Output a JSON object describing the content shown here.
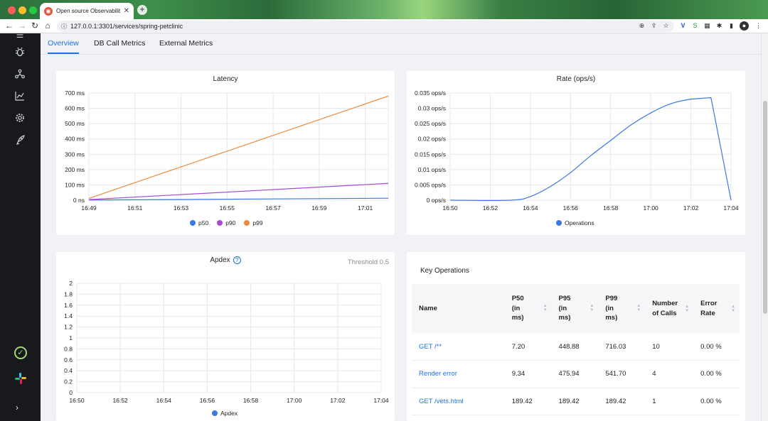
{
  "browser": {
    "tab_title": "Open source Observability Pla",
    "url": "127.0.0.1:3301/services/spring-petclinic"
  },
  "tabs": [
    "Overview",
    "DB Call Metrics",
    "External Metrics"
  ],
  "latency": {
    "title": "Latency",
    "legend": [
      "p50",
      "p90",
      "p99"
    ]
  },
  "rate": {
    "title": "Rate (ops/s)",
    "legend": [
      "Operations"
    ]
  },
  "apdex": {
    "title": "Apdex",
    "threshold": "Threshold 0.5",
    "legend": [
      "Apdex"
    ]
  },
  "key_operations": {
    "title": "Key Operations",
    "columns": [
      "Name",
      "P50 (in ms)",
      "P95 (in ms)",
      "P99 (in ms)",
      "Number of Calls",
      "Error Rate"
    ],
    "rows": [
      {
        "name": "GET /**",
        "p50": "7.20",
        "p95": "448.88",
        "p99": "716.03",
        "calls": "10",
        "error": "0.00 %"
      },
      {
        "name": "Render error",
        "p50": "9.34",
        "p95": "475.94",
        "p99": "541.70",
        "calls": "4",
        "error": "0.00 %"
      },
      {
        "name": "GET /vets.html",
        "p50": "189.42",
        "p95": "189.42",
        "p99": "189.42",
        "calls": "1",
        "error": "0.00 %"
      }
    ]
  },
  "colors": {
    "accent": "#1a73e8",
    "p50": "#3b78e7",
    "p90": "#a74ad6",
    "p99": "#ee8a3c"
  },
  "chart_data": [
    {
      "type": "line",
      "title": "Latency",
      "x_ticks": [
        "16:49",
        "16:51",
        "16:53",
        "16:55",
        "16:57",
        "16:59",
        "17:01"
      ],
      "y_ticks": [
        "700 ms",
        "600 ms",
        "500 ms",
        "400 ms",
        "300 ms",
        "200 ms",
        "100 ms",
        "0 ns"
      ],
      "ylim": [
        0,
        700
      ],
      "grid": true,
      "legend": "bottom",
      "x": [
        "16:49",
        "17:02"
      ],
      "series": [
        {
          "name": "p50",
          "values": [
            1,
            13
          ]
        },
        {
          "name": "p90",
          "values": [
            4,
            110
          ]
        },
        {
          "name": "p99",
          "values": [
            12,
            680
          ]
        }
      ]
    },
    {
      "type": "line",
      "title": "Rate (ops/s)",
      "x_ticks": [
        "16:50",
        "16:52",
        "16:54",
        "16:56",
        "16:58",
        "17:00",
        "17:02",
        "17:04"
      ],
      "y_ticks": [
        "0.035 ops/s",
        "0.03 ops/s",
        "0.025 ops/s",
        "0.02 ops/s",
        "0.015 ops/s",
        "0.01 ops/s",
        "0.005 ops/s",
        "0 ops/s"
      ],
      "ylim": [
        0,
        0.035
      ],
      "grid": true,
      "legend": "bottom",
      "series": [
        {
          "name": "Operations",
          "x": [
            "16:50",
            "16:53",
            "16:54",
            "16:55",
            "16:56",
            "16:57",
            "16:58",
            "16:59",
            "17:00",
            "17:01",
            "17:02",
            "17:03",
            "17:04"
          ],
          "values": [
            0,
            0,
            0.0012,
            0.0045,
            0.009,
            0.0145,
            0.0195,
            0.0245,
            0.0285,
            0.0315,
            0.033,
            0.0335,
            0
          ]
        }
      ]
    },
    {
      "type": "line",
      "title": "Apdex",
      "x_ticks": [
        "16:50",
        "16:52",
        "16:54",
        "16:56",
        "16:58",
        "17:00",
        "17:02",
        "17:04"
      ],
      "y_ticks": [
        "2",
        "1.8",
        "1.6",
        "1.4",
        "1.2",
        "1",
        "0.8",
        "0.6",
        "0.4",
        "0.2",
        "0"
      ],
      "ylim": [
        0,
        2
      ],
      "grid": true,
      "legend": "bottom",
      "series": [
        {
          "name": "Apdex",
          "values": []
        }
      ]
    }
  ]
}
